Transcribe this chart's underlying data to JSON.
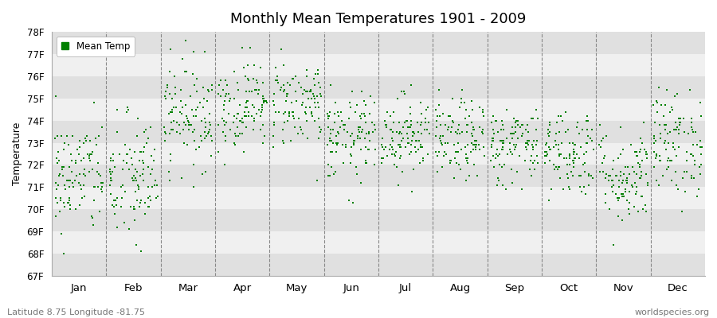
{
  "title": "Monthly Mean Temperatures 1901 - 2009",
  "ylabel": "Temperature",
  "xlabel_bottom_left": "Latitude 8.75 Longitude -81.75",
  "xlabel_bottom_right": "worldspecies.org",
  "legend_label": "Mean Temp",
  "dot_color": "#008000",
  "background_color": "#ffffff",
  "plot_bg_color_light": "#f0f0f0",
  "plot_bg_color_dark": "#e0e0e0",
  "ylim_min": 67,
  "ylim_max": 78,
  "ytick_labels": [
    "67F",
    "68F",
    "69F",
    "70F",
    "71F",
    "72F",
    "73F",
    "74F",
    "75F",
    "76F",
    "77F",
    "78F"
  ],
  "ytick_values": [
    67,
    68,
    69,
    70,
    71,
    72,
    73,
    74,
    75,
    76,
    77,
    78
  ],
  "months": [
    "Jan",
    "Feb",
    "Mar",
    "Apr",
    "May",
    "Jun",
    "Jul",
    "Aug",
    "Sep",
    "Oct",
    "Nov",
    "Dec"
  ],
  "num_years": 109,
  "seed": 42,
  "month_means": [
    71.5,
    71.3,
    74.3,
    74.7,
    74.8,
    73.2,
    73.4,
    73.1,
    72.9,
    72.6,
    71.5,
    73.0
  ],
  "month_stds": [
    1.3,
    1.5,
    1.2,
    1.0,
    1.0,
    1.0,
    0.9,
    0.9,
    0.9,
    1.0,
    1.1,
    1.2
  ]
}
